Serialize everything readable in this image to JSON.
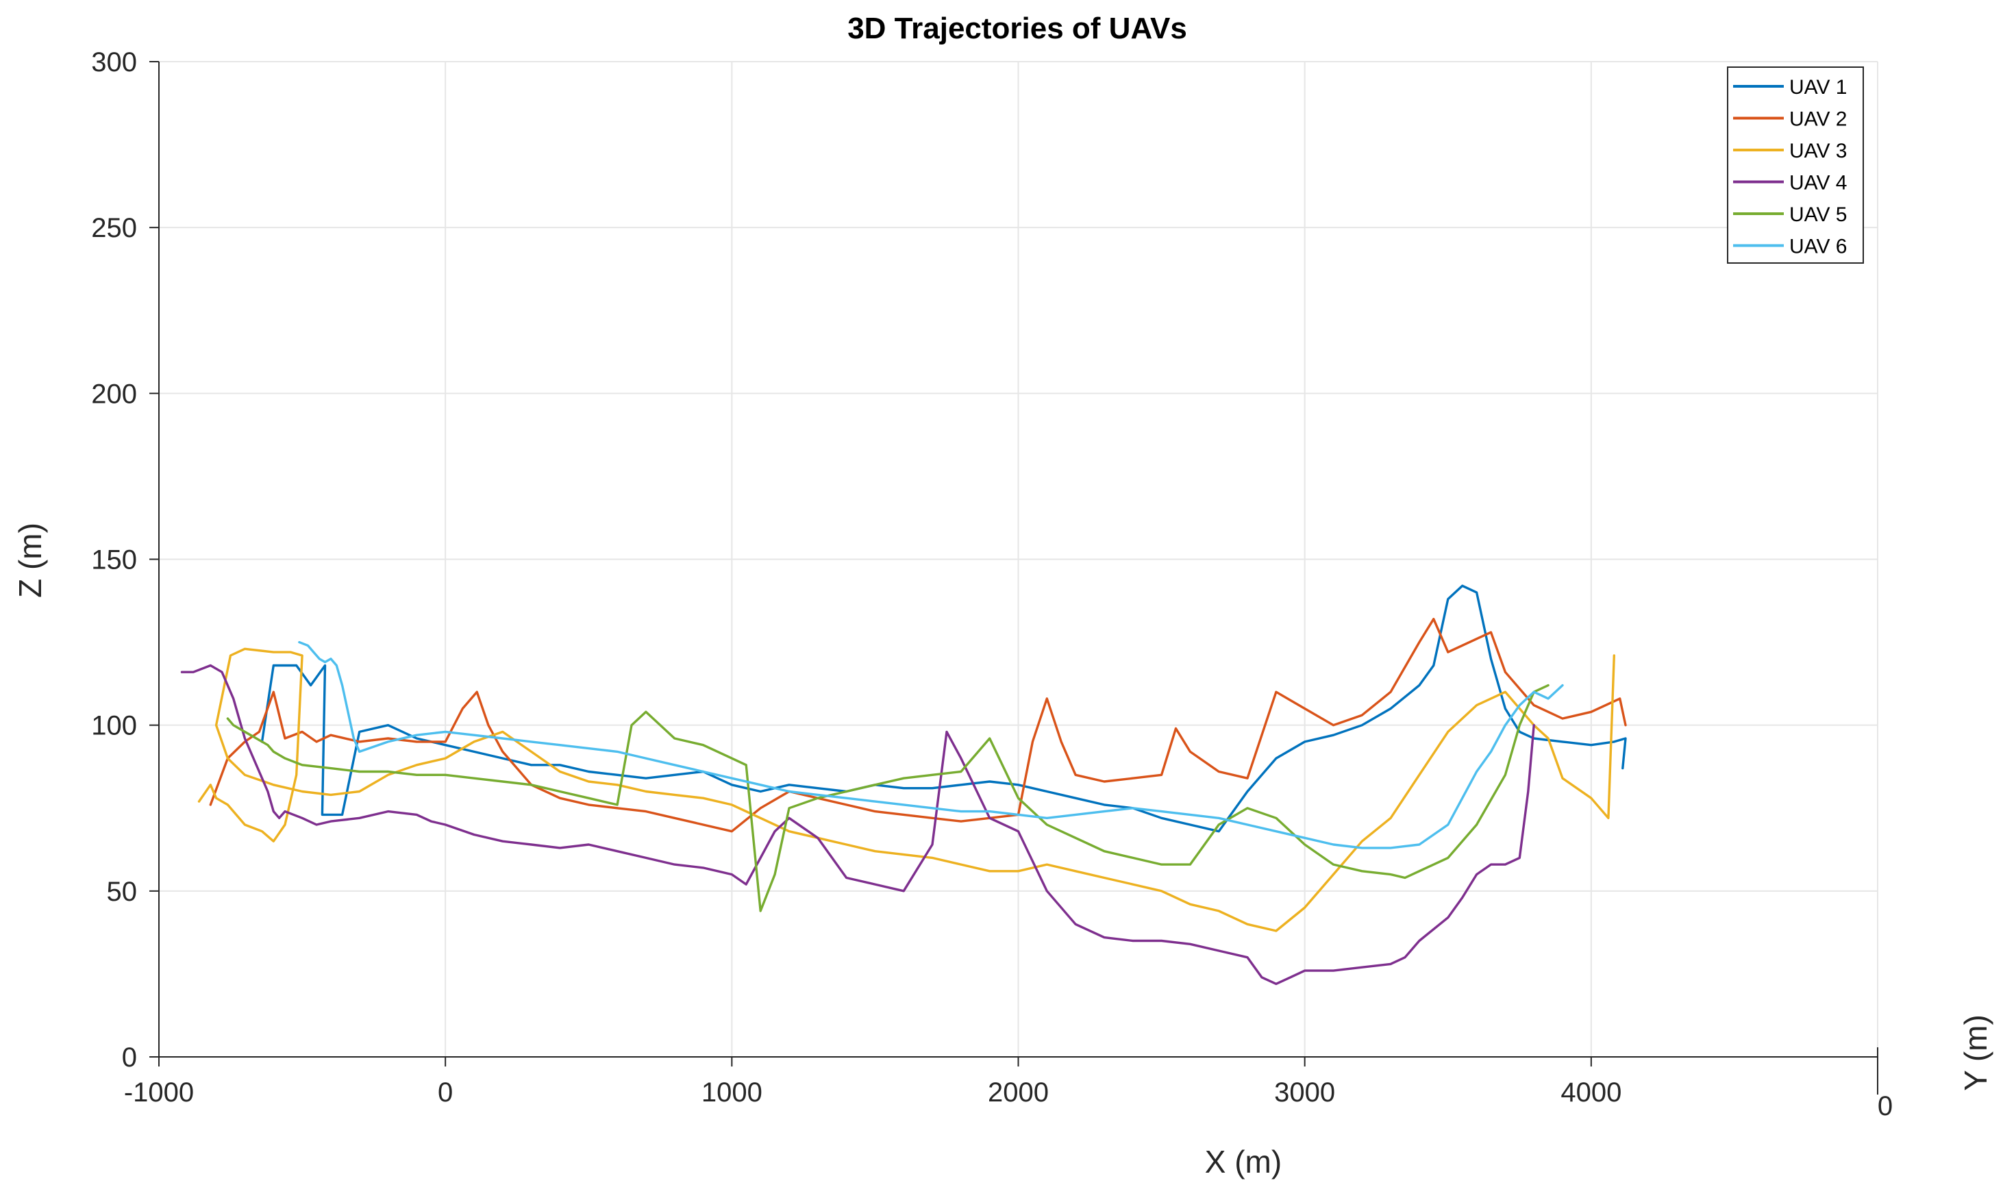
{
  "chart_data": {
    "type": "line",
    "title": "3D Trajectories of UAVs",
    "xlabel": "X (m)",
    "ylabel": "Z (m)",
    "ylabel3d": "Y (m)",
    "y_axis_tick": "0",
    "xlim": [
      -1000,
      5000
    ],
    "ylim": [
      0,
      300
    ],
    "x_ticks": [
      -1000,
      0,
      1000,
      2000,
      3000,
      4000
    ],
    "y_ticks": [
      0,
      50,
      100,
      150,
      200,
      250,
      300
    ],
    "grid": true,
    "legend_position": "top-right",
    "series": [
      {
        "name": "UAV 1",
        "color": "#0072BD",
        "x": [
          -640,
          -600,
          -520,
          -470,
          -420,
          -430,
          -360,
          -300,
          -200,
          -100,
          0,
          100,
          200,
          300,
          400,
          500,
          600,
          700,
          800,
          900,
          1000,
          1100,
          1200,
          1300,
          1400,
          1500,
          1600,
          1700,
          1800,
          1900,
          2000,
          2100,
          2200,
          2300,
          2400,
          2500,
          2600,
          2700,
          2800,
          2900,
          3000,
          3100,
          3200,
          3300,
          3400,
          3450,
          3500,
          3550,
          3600,
          3650,
          3700,
          3750,
          3800,
          3900,
          4000,
          4080,
          4120,
          4110
        ],
        "y": [
          95,
          118,
          118,
          112,
          118,
          73,
          73,
          98,
          100,
          96,
          94,
          92,
          90,
          88,
          88,
          86,
          85,
          84,
          85,
          86,
          82,
          80,
          82,
          81,
          80,
          82,
          81,
          81,
          82,
          83,
          82,
          80,
          78,
          76,
          75,
          72,
          70,
          68,
          80,
          90,
          95,
          97,
          100,
          105,
          112,
          118,
          138,
          142,
          140,
          120,
          105,
          98,
          96,
          95,
          94,
          95,
          96,
          87
        ]
      },
      {
        "name": "UAV 2",
        "color": "#D95319",
        "x": [
          -820,
          -760,
          -700,
          -650,
          -600,
          -560,
          -500,
          -450,
          -400,
          -300,
          -200,
          -100,
          0,
          60,
          110,
          150,
          200,
          300,
          400,
          500,
          600,
          700,
          800,
          900,
          1000,
          1100,
          1200,
          1300,
          1400,
          1500,
          1600,
          1700,
          1800,
          1900,
          2000,
          2050,
          2100,
          2150,
          2200,
          2300,
          2400,
          2500,
          2550,
          2600,
          2700,
          2800,
          2900,
          3000,
          3100,
          3200,
          3300,
          3400,
          3450,
          3500,
          3600,
          3650,
          3700,
          3800,
          3900,
          4000,
          4100,
          4120
        ],
        "y": [
          76,
          90,
          95,
          98,
          110,
          96,
          98,
          95,
          97,
          95,
          96,
          95,
          95,
          105,
          110,
          100,
          92,
          82,
          78,
          76,
          75,
          74,
          72,
          70,
          68,
          75,
          80,
          78,
          76,
          74,
          73,
          72,
          71,
          72,
          73,
          95,
          108,
          95,
          85,
          83,
          84,
          85,
          99,
          92,
          86,
          84,
          110,
          105,
          100,
          103,
          110,
          125,
          132,
          122,
          126,
          128,
          116,
          106,
          102,
          104,
          108,
          100
        ]
      },
      {
        "name": "UAV 3",
        "color": "#EDB120",
        "x": [
          -860,
          -820,
          -800,
          -760,
          -700,
          -640,
          -600,
          -560,
          -520,
          -500,
          -540,
          -600,
          -700,
          -750,
          -800,
          -760,
          -700,
          -600,
          -500,
          -400,
          -300,
          -200,
          -100,
          0,
          100,
          200,
          300,
          400,
          500,
          600,
          700,
          800,
          900,
          1000,
          1100,
          1200,
          1300,
          1400,
          1500,
          1600,
          1700,
          1800,
          1900,
          2000,
          2100,
          2200,
          2300,
          2400,
          2500,
          2600,
          2700,
          2800,
          2900,
          3000,
          3100,
          3200,
          3300,
          3400,
          3500,
          3600,
          3700,
          3800,
          3850,
          3900,
          4000,
          4060,
          4080
        ],
        "y": [
          77,
          82,
          78,
          76,
          70,
          68,
          65,
          70,
          85,
          121,
          122,
          122,
          123,
          121,
          100,
          90,
          85,
          82,
          80,
          79,
          80,
          85,
          88,
          90,
          95,
          98,
          92,
          86,
          83,
          82,
          80,
          79,
          78,
          76,
          72,
          68,
          66,
          64,
          62,
          61,
          60,
          58,
          56,
          56,
          58,
          56,
          54,
          52,
          50,
          46,
          44,
          40,
          38,
          45,
          55,
          65,
          72,
          85,
          98,
          106,
          110,
          100,
          96,
          84,
          78,
          72,
          121
        ]
      },
      {
        "name": "UAV 4",
        "color": "#7E2F8E",
        "x": [
          -920,
          -880,
          -820,
          -780,
          -740,
          -700,
          -660,
          -620,
          -600,
          -580,
          -560,
          -500,
          -450,
          -400,
          -300,
          -200,
          -100,
          -50,
          0,
          100,
          200,
          300,
          400,
          500,
          600,
          700,
          800,
          900,
          1000,
          1050,
          1100,
          1150,
          1200,
          1300,
          1400,
          1500,
          1600,
          1700,
          1750,
          1800,
          1900,
          2000,
          2100,
          2200,
          2300,
          2400,
          2500,
          2600,
          2700,
          2800,
          2850,
          2900,
          2950,
          3000,
          3100,
          3200,
          3300,
          3350,
          3400,
          3500,
          3550,
          3600,
          3650,
          3700,
          3750,
          3780,
          3800
        ],
        "y": [
          116,
          116,
          118,
          116,
          108,
          96,
          88,
          80,
          74,
          72,
          74,
          72,
          70,
          71,
          72,
          74,
          73,
          71,
          70,
          67,
          65,
          64,
          63,
          64,
          62,
          60,
          58,
          57,
          55,
          52,
          60,
          68,
          72,
          66,
          54,
          52,
          50,
          64,
          98,
          90,
          72,
          68,
          50,
          40,
          36,
          35,
          35,
          34,
          32,
          30,
          24,
          22,
          24,
          26,
          26,
          27,
          28,
          30,
          35,
          42,
          48,
          55,
          58,
          58,
          60,
          80,
          100
        ]
      },
      {
        "name": "UAV 5",
        "color": "#77AC30",
        "x": [
          -760,
          -740,
          -700,
          -660,
          -620,
          -600,
          -560,
          -500,
          -400,
          -300,
          -200,
          -100,
          0,
          100,
          200,
          300,
          400,
          500,
          600,
          650,
          700,
          800,
          900,
          1000,
          1050,
          1100,
          1150,
          1200,
          1300,
          1400,
          1500,
          1600,
          1700,
          1800,
          1900,
          2000,
          2100,
          2200,
          2300,
          2400,
          2500,
          2600,
          2700,
          2800,
          2900,
          3000,
          3100,
          3200,
          3300,
          3350,
          3400,
          3500,
          3600,
          3700,
          3750,
          3800,
          3850
        ],
        "y": [
          102,
          100,
          98,
          96,
          94,
          92,
          90,
          88,
          87,
          86,
          86,
          85,
          85,
          84,
          83,
          82,
          80,
          78,
          76,
          100,
          104,
          96,
          94,
          90,
          88,
          44,
          55,
          75,
          78,
          80,
          82,
          84,
          85,
          86,
          96,
          78,
          70,
          66,
          62,
          60,
          58,
          58,
          70,
          75,
          72,
          64,
          58,
          56,
          55,
          54,
          56,
          60,
          70,
          85,
          100,
          110,
          112
        ]
      },
      {
        "name": "UAV 6",
        "color": "#4DBEEE",
        "x": [
          -510,
          -480,
          -460,
          -440,
          -420,
          -400,
          -380,
          -360,
          -340,
          -320,
          -300,
          -200,
          -100,
          0,
          100,
          200,
          300,
          400,
          500,
          600,
          700,
          800,
          900,
          1000,
          1100,
          1200,
          1300,
          1400,
          1500,
          1600,
          1700,
          1800,
          1900,
          2000,
          2100,
          2200,
          2300,
          2400,
          2500,
          2600,
          2700,
          2800,
          2900,
          3000,
          3100,
          3200,
          3300,
          3400,
          3500,
          3600,
          3650,
          3700,
          3750,
          3800,
          3850,
          3900
        ],
        "y": [
          125,
          124,
          122,
          120,
          119,
          120,
          118,
          112,
          104,
          96,
          92,
          95,
          97,
          98,
          97,
          96,
          95,
          94,
          93,
          92,
          90,
          88,
          86,
          84,
          82,
          80,
          79,
          78,
          77,
          76,
          75,
          74,
          74,
          73,
          72,
          73,
          74,
          75,
          74,
          73,
          72,
          70,
          68,
          66,
          64,
          63,
          63,
          64,
          70,
          86,
          92,
          100,
          106,
          110,
          108,
          112
        ]
      }
    ]
  }
}
